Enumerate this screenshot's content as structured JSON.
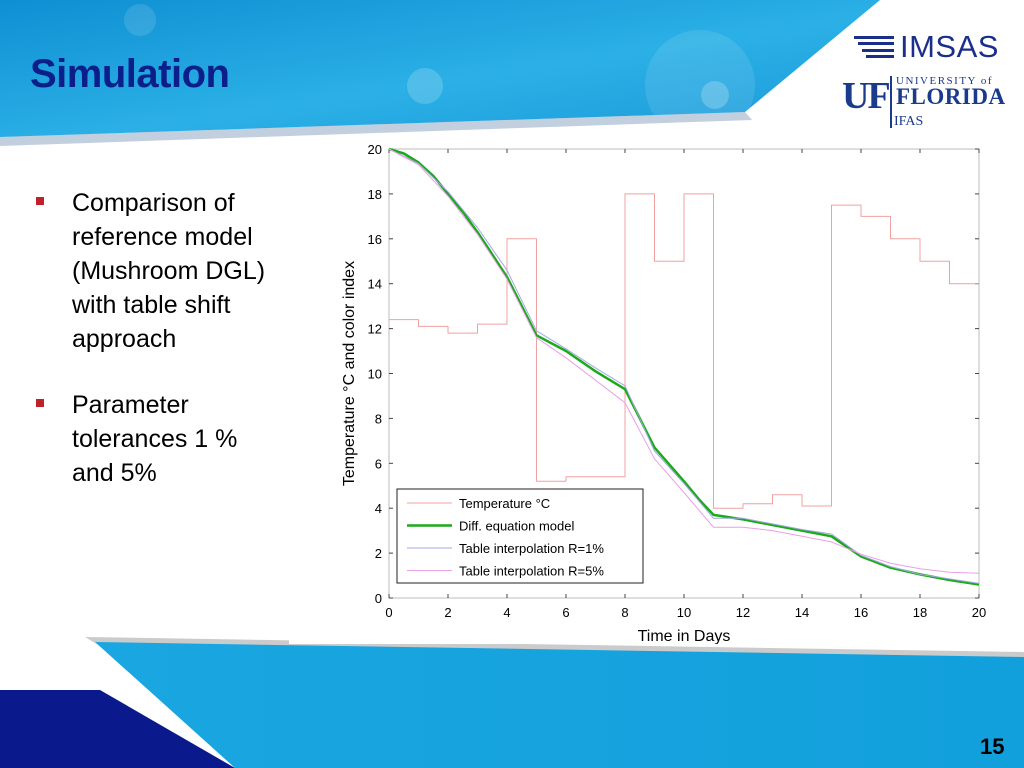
{
  "slide": {
    "title": "Simulation",
    "page_number": "15",
    "colors": {
      "title": "#0b1f8a",
      "banner": "#1aa0dc",
      "band_dark": "#0a1a8c",
      "bullet": "#c0202a"
    }
  },
  "logos": {
    "imsas": "IMSAS",
    "uf_mark": "UF",
    "uf_university": "UNIVERSITY of",
    "uf_florida": "FLORIDA",
    "uf_ifas": "IFAS"
  },
  "bullets": [
    {
      "icon": "square-bullet-icon",
      "text": "Comparison of reference model (Mushroom DGL)  with table shift approach"
    },
    {
      "icon": "square-bullet-icon",
      "text": "Parameter tolerances 1 % and 5%"
    }
  ],
  "chart_data": {
    "type": "line",
    "xlabel": "Time in Days",
    "ylabel": "Temperature °C and color index",
    "xlim": [
      0,
      20
    ],
    "ylim": [
      0,
      20
    ],
    "xticks": [
      0,
      2,
      4,
      6,
      8,
      10,
      12,
      14,
      16,
      18,
      20
    ],
    "yticks": [
      0,
      2,
      4,
      6,
      8,
      10,
      12,
      14,
      16,
      18,
      20
    ],
    "grid": false,
    "legend_position": "bottom-left",
    "series": [
      {
        "name": "Temperature °C",
        "color": "#f0a0a0",
        "width": 1,
        "step": true,
        "points": [
          [
            0,
            12.4
          ],
          [
            1,
            12.4
          ],
          [
            1,
            12.1
          ],
          [
            2,
            12.1
          ],
          [
            2,
            11.8
          ],
          [
            3,
            11.8
          ],
          [
            3,
            12.2
          ],
          [
            4,
            12.2
          ],
          [
            4,
            16
          ],
          [
            5,
            16
          ],
          [
            5,
            5.2
          ],
          [
            6,
            5.2
          ],
          [
            6,
            5.4
          ],
          [
            8,
            5.4
          ],
          [
            8,
            18
          ],
          [
            9,
            18
          ],
          [
            9,
            15
          ],
          [
            10,
            15
          ],
          [
            10,
            18
          ],
          [
            11,
            18
          ],
          [
            11,
            4
          ],
          [
            12,
            4
          ],
          [
            12,
            4.2
          ],
          [
            13,
            4.2
          ],
          [
            13,
            4.6
          ],
          [
            14,
            4.6
          ],
          [
            14,
            4.1
          ],
          [
            15,
            4.1
          ],
          [
            15,
            17.5
          ],
          [
            16,
            17.5
          ],
          [
            16,
            17
          ],
          [
            17,
            17
          ],
          [
            17,
            16
          ],
          [
            18,
            16
          ],
          [
            18,
            15
          ],
          [
            19,
            15
          ],
          [
            19,
            14
          ],
          [
            20,
            14
          ]
        ]
      },
      {
        "name": "Diff. equation model",
        "color": "#1aaa1a",
        "width": 2.5,
        "step": false,
        "points": [
          [
            0,
            20
          ],
          [
            0.5,
            19.8
          ],
          [
            1,
            19.4
          ],
          [
            1.5,
            18.8
          ],
          [
            2,
            18
          ],
          [
            2.5,
            17.2
          ],
          [
            3,
            16.3
          ],
          [
            3.5,
            15.3
          ],
          [
            4,
            14.3
          ],
          [
            4.5,
            13
          ],
          [
            5,
            11.7
          ],
          [
            6,
            11
          ],
          [
            7,
            10.1
          ],
          [
            8,
            9.3
          ],
          [
            8.5,
            8
          ],
          [
            9,
            6.7
          ],
          [
            10,
            5.2
          ],
          [
            10.5,
            4.4
          ],
          [
            11,
            3.7
          ],
          [
            12,
            3.5
          ],
          [
            13,
            3.25
          ],
          [
            14,
            3
          ],
          [
            15,
            2.75
          ],
          [
            16,
            1.85
          ],
          [
            17,
            1.35
          ],
          [
            18,
            1.05
          ],
          [
            19,
            0.8
          ],
          [
            20,
            0.6
          ]
        ]
      },
      {
        "name": "Table interpolation R=1%",
        "color": "#a0a8e0",
        "width": 1,
        "step": false,
        "points": [
          [
            0,
            20
          ],
          [
            1,
            19.35
          ],
          [
            2,
            18.1
          ],
          [
            3,
            16.5
          ],
          [
            4,
            14.6
          ],
          [
            5,
            11.9
          ],
          [
            6,
            11.1
          ],
          [
            7,
            10.25
          ],
          [
            8,
            9.45
          ],
          [
            9,
            6.55
          ],
          [
            10,
            5.1
          ],
          [
            11,
            3.55
          ],
          [
            12,
            3.55
          ],
          [
            13,
            3.3
          ],
          [
            14,
            3.05
          ],
          [
            15,
            2.85
          ],
          [
            16,
            1.9
          ],
          [
            17,
            1.4
          ],
          [
            18,
            1.05
          ],
          [
            19,
            0.85
          ],
          [
            20,
            0.65
          ]
        ]
      },
      {
        "name": "Table interpolation R=5%",
        "color": "#e8a0e8",
        "width": 1,
        "step": false,
        "points": [
          [
            0,
            20
          ],
          [
            1,
            19.3
          ],
          [
            2,
            17.9
          ],
          [
            3,
            16.2
          ],
          [
            4,
            14.2
          ],
          [
            5,
            11.6
          ],
          [
            6,
            10.7
          ],
          [
            7,
            9.7
          ],
          [
            8,
            8.7
          ],
          [
            9,
            6.2
          ],
          [
            10,
            4.7
          ],
          [
            11,
            3.15
          ],
          [
            12,
            3.15
          ],
          [
            13,
            3
          ],
          [
            14,
            2.75
          ],
          [
            15,
            2.5
          ],
          [
            16,
            1.95
          ],
          [
            17,
            1.55
          ],
          [
            18,
            1.3
          ],
          [
            19,
            1.15
          ],
          [
            20,
            1.1
          ]
        ]
      }
    ]
  }
}
